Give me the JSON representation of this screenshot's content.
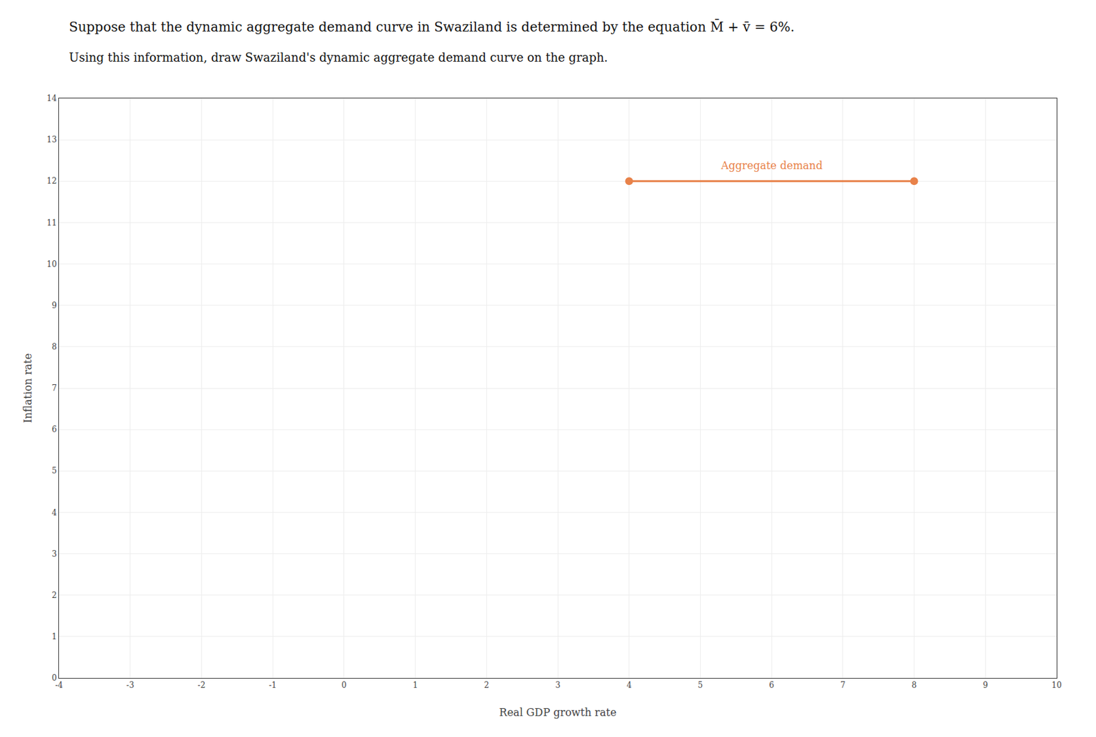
{
  "chart_data": {
    "type": "line",
    "title": "Suppose that the dynamic aggregate demand curve in Swaziland is determined by the equation M̄ + v̄ = 6%.",
    "subtitle": "Using this information, draw Swaziland's dynamic aggregate demand curve on the graph.",
    "xlabel": "Real GDP growth rate",
    "ylabel": "Inflation rate",
    "series": [
      {
        "color": "#E8824A",
        "x": [
          4,
          8
        ],
        "values": [
          12,
          12
        ],
        "marker": "circle",
        "line_style": "solid"
      }
    ],
    "annotations": [
      "Aggregate demand"
    ],
    "xlim": [
      -4,
      10
    ],
    "ylim": [
      0,
      14
    ],
    "xticks": [
      -4,
      -3,
      -2,
      -1,
      0,
      1,
      2,
      3,
      4,
      5,
      6,
      7,
      8,
      9,
      10
    ],
    "yticks": [
      0,
      1,
      2,
      3,
      4,
      5,
      6,
      7,
      8,
      9,
      10,
      11,
      12,
      13,
      14
    ],
    "grid": true
  }
}
